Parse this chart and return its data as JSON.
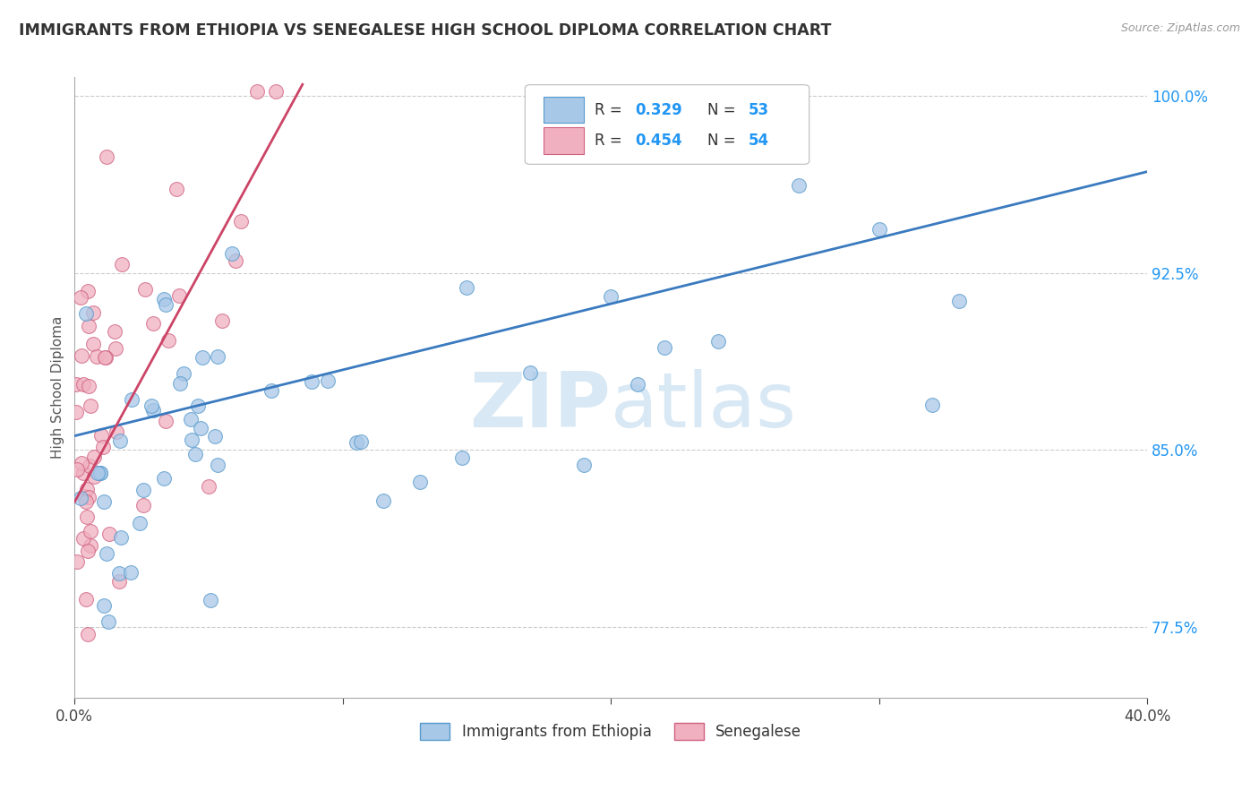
{
  "title": "IMMIGRANTS FROM ETHIOPIA VS SENEGALESE HIGH SCHOOL DIPLOMA CORRELATION CHART",
  "source": "Source: ZipAtlas.com",
  "ylabel": "High School Diploma",
  "xlim": [
    0.0,
    0.4
  ],
  "ylim": [
    0.745,
    1.008
  ],
  "xticks": [
    0.0,
    0.1,
    0.2,
    0.3,
    0.4
  ],
  "xtick_labels": [
    "0.0%",
    "",
    "",
    "",
    "40.0%"
  ],
  "ytick_values": [
    1.0,
    0.925,
    0.85,
    0.775
  ],
  "ytick_labels": [
    "100.0%",
    "92.5%",
    "85.0%",
    "77.5%"
  ],
  "blue_color": "#a8c8e8",
  "blue_edge": "#5599cc",
  "pink_color": "#f0b0c0",
  "pink_edge": "#d06080",
  "blue_trend_color": "#3a7abf",
  "pink_trend_color": "#cc4466",
  "watermark_color": "#d8e8f4",
  "grid_color": "#cccccc",
  "background_color": "#ffffff",
  "blue_trend": [
    0.0,
    0.856,
    0.4,
    0.968
  ],
  "pink_trend": [
    0.0,
    0.828,
    0.085,
    1.005
  ],
  "blue_seed": 42,
  "pink_seed": 99
}
